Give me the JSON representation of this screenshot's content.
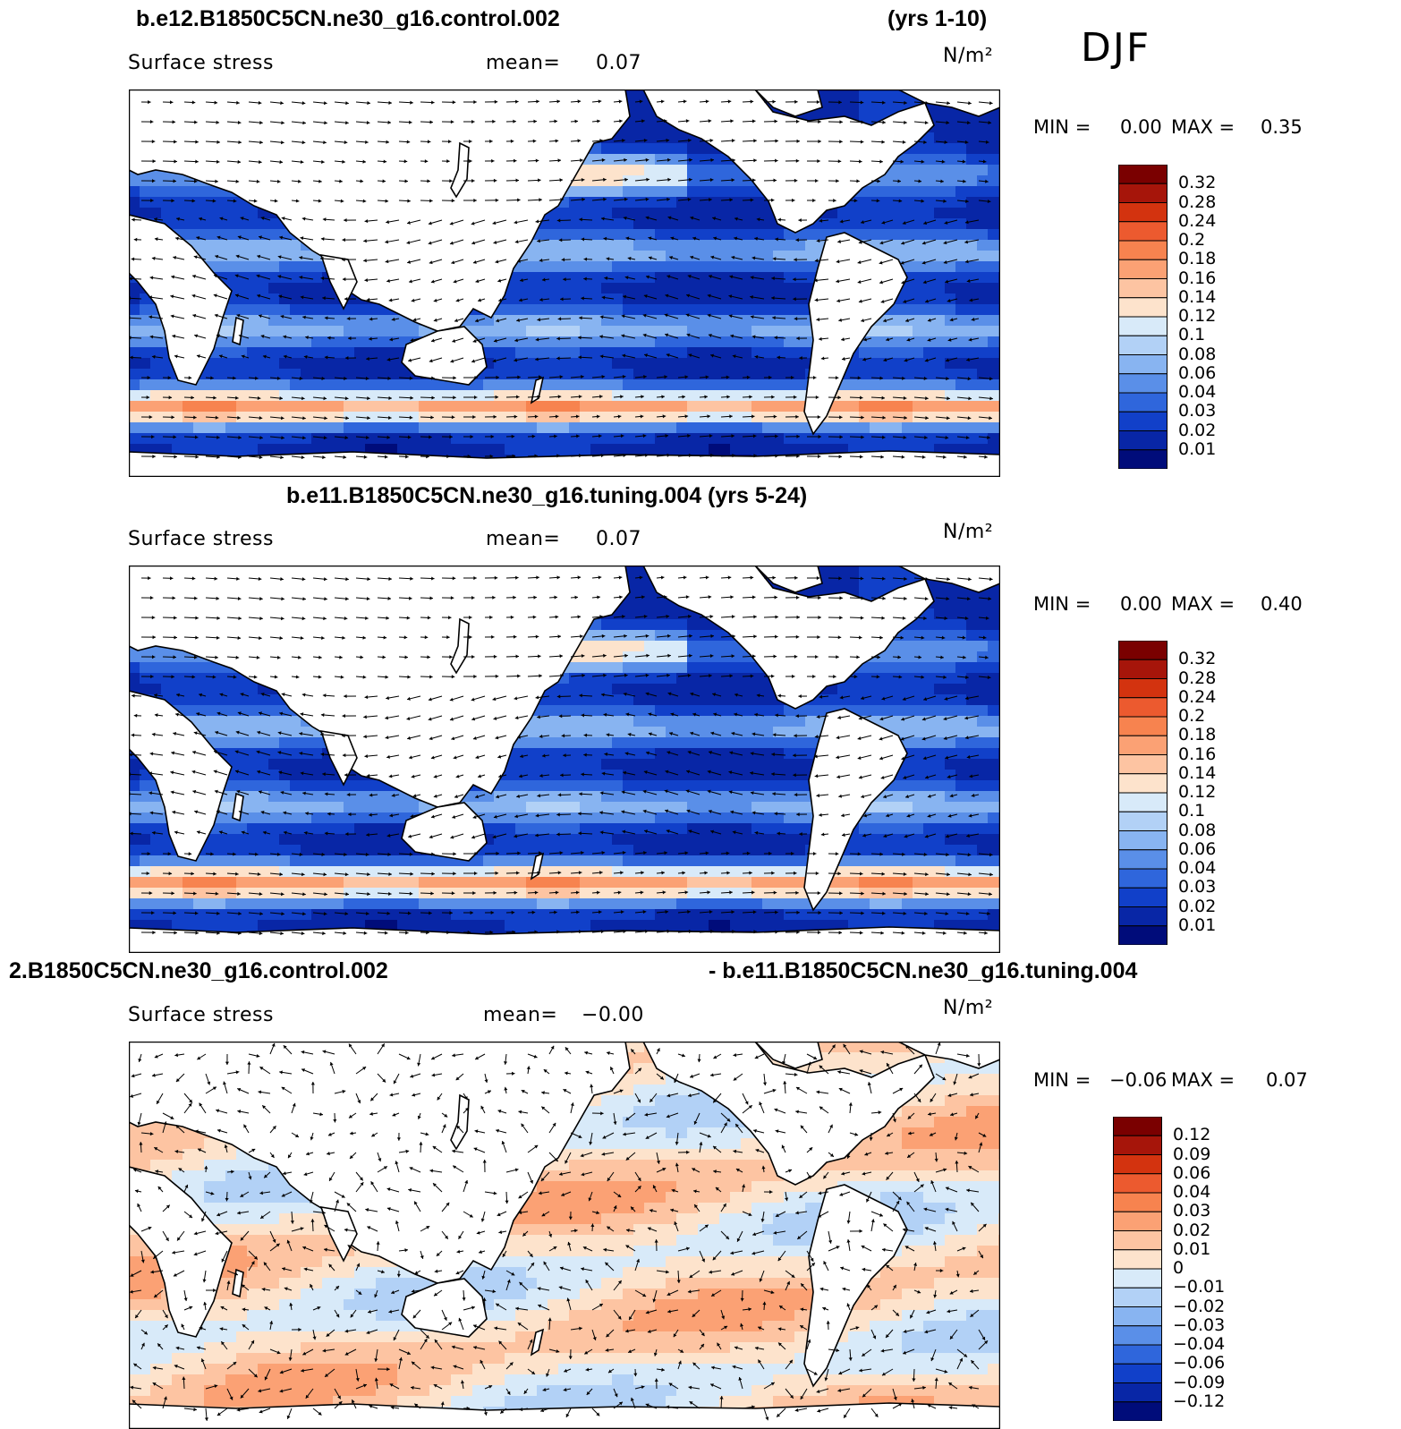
{
  "season": "DJF",
  "panels": [
    {
      "title_left": "b.e12.B1850C5CN.ne30_g16.control.002",
      "title_right": "(yrs 1-10)",
      "variable": "Surface stress",
      "mean_label": "mean=",
      "mean_value": "0.07",
      "units": "N/m²",
      "min_label": "MIN =",
      "min_value": "0.00",
      "max_label": "MAX =",
      "max_value": "0.35",
      "colorbar_labels": [
        "0.32",
        "0.28",
        "0.24",
        "0.2",
        "0.18",
        "0.16",
        "0.14",
        "0.12",
        "0.1",
        "0.08",
        "0.06",
        "0.04",
        "0.03",
        "0.02",
        "0.01"
      ]
    },
    {
      "title_center": "b.e11.B1850C5CN.ne30_g16.tuning.004 (yrs 5-24)",
      "variable": "Surface stress",
      "mean_label": "mean=",
      "mean_value": "0.07",
      "units": "N/m²",
      "min_label": "MIN =",
      "min_value": "0.00",
      "max_label": "MAX =",
      "max_value": "0.40",
      "colorbar_labels": [
        "0.32",
        "0.28",
        "0.24",
        "0.2",
        "0.18",
        "0.16",
        "0.14",
        "0.12",
        "0.1",
        "0.08",
        "0.06",
        "0.04",
        "0.03",
        "0.02",
        "0.01"
      ]
    },
    {
      "title_left": "2.B1850C5CN.ne30_g16.control.002",
      "title_right": "- b.e11.B1850C5CN.ne30_g16.tuning.004",
      "variable": "Surface stress",
      "mean_label": "mean=",
      "mean_value": "−0.00",
      "units": "N/m²",
      "min_label": "MIN =",
      "min_value": "−0.06",
      "max_label": "MAX =",
      "max_value": "0.07",
      "colorbar_labels": [
        "0.12",
        "0.09",
        "0.06",
        "0.04",
        "0.03",
        "0.02",
        "0.01",
        "0",
        "−0.01",
        "−0.02",
        "−0.03",
        "−0.04",
        "−0.06",
        "−0.09",
        "−0.12"
      ]
    }
  ],
  "colors": {
    "scale": [
      "#7a0000",
      "#a6150a",
      "#d3330f",
      "#ec5a2f",
      "#f7834f",
      "#fba174",
      "#fdc4a2",
      "#fde3cc",
      "#d8eaf9",
      "#b2d1f6",
      "#88b4f1",
      "#5a8fe8",
      "#2f66dc",
      "#1140c9",
      "#0826a6",
      "#000c7a"
    ]
  }
}
